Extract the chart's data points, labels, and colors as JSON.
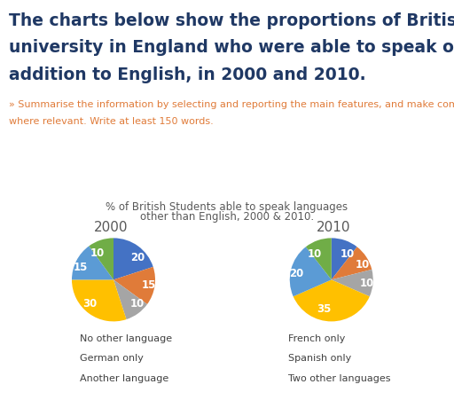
{
  "title_main_line1": "The charts below show the proportions of British students at one",
  "title_main_line2": "university in England who were able to speak other languages in",
  "title_main_line3": "addition to English, in 2000 and 2010.",
  "subtitle_line1": "» Summarise the information by selecting and reporting the main features, and make comparison",
  "subtitle_line2": "where relevant. Write at least 150 words.",
  "chart_title_line1": "% of British Students able to speak languages",
  "chart_title_line2": "other than English, 2000 & 2010.",
  "year_2000_label": "2000",
  "year_2010_label": "2010",
  "categories": [
    "No other language",
    "French only",
    "German only",
    "Spanish only",
    "Another language",
    "Two other languages"
  ],
  "colors": [
    "#4472C4",
    "#E07B39",
    "#A5A5A5",
    "#FFC000",
    "#5B9BD5",
    "#70AD47"
  ],
  "values_2000": [
    20,
    15,
    10,
    30,
    15,
    10
  ],
  "values_2010": [
    10,
    10,
    10,
    35,
    20,
    10
  ],
  "labels_2000": [
    "20",
    "15",
    "10",
    "30",
    "15",
    "10"
  ],
  "labels_2010": [
    "10",
    "10",
    "10",
    "35",
    "20",
    "10"
  ],
  "startangle_2000": 90,
  "startangle_2010": 90,
  "background_color": "#FFFFFF",
  "main_title_color": "#1F3864",
  "subtitle_color": "#E07B39",
  "chart_title_color": "#595959",
  "legend_color": "#404040",
  "main_title_fontsize": 13.5,
  "subtitle_fontsize": 8.0,
  "chart_title_fontsize": 8.5,
  "year_label_fontsize": 11,
  "legend_fontsize": 8.0,
  "pie_label_fontsize": 8.5,
  "pie_label_color": "white"
}
